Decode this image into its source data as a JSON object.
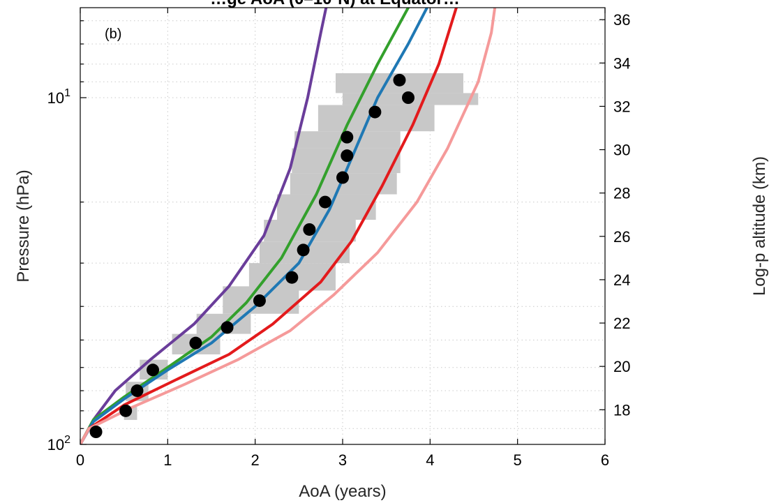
{
  "chart_data": {
    "type": "line",
    "title": "…ge AoA (0–10ºN) at Equator…",
    "panel_label": "(b)",
    "xlabel": "AoA (years)",
    "ylabel": "Pressure (hPa)",
    "y2label": "Log-p altitude (km)",
    "xlim": [
      0,
      6
    ],
    "ylim_hpa": [
      100,
      4.3
    ],
    "y_scale": "log",
    "grid": true,
    "x_ticks": [
      "0",
      "1",
      "2",
      "3",
      "4",
      "5",
      "6"
    ],
    "y_ticks": [
      {
        "label": "10",
        "exp": "2",
        "value": 100
      },
      {
        "label": "10",
        "exp": "1",
        "value": 10
      }
    ],
    "y2_ticks": [
      "18",
      "20",
      "22",
      "24",
      "26",
      "28",
      "30",
      "32",
      "34",
      "36"
    ],
    "y2_km_per_decade": 16,
    "colors": {
      "purple": "#6a3d9a",
      "green": "#33a02c",
      "blue": "#1f78b4",
      "red": "#e31a1c",
      "pink": "#f59a9a",
      "box": "#c8c8c8",
      "obs": "#000000"
    },
    "series": [
      {
        "color": "purple",
        "points": [
          [
            0,
            100
          ],
          [
            0.15,
            85
          ],
          [
            0.4,
            70
          ],
          [
            0.8,
            57
          ],
          [
            1.3,
            45
          ],
          [
            1.7,
            35
          ],
          [
            2.1,
            25
          ],
          [
            2.4,
            16
          ],
          [
            2.6,
            10
          ],
          [
            2.75,
            6.5
          ],
          [
            2.9,
            4.3
          ]
        ]
      },
      {
        "color": "green",
        "points": [
          [
            0,
            100
          ],
          [
            0.15,
            85
          ],
          [
            0.5,
            73
          ],
          [
            1.0,
            60
          ],
          [
            1.5,
            49
          ],
          [
            1.9,
            39
          ],
          [
            2.3,
            29
          ],
          [
            2.7,
            19
          ],
          [
            3.05,
            12
          ],
          [
            3.4,
            8
          ],
          [
            3.75,
            5.5
          ],
          [
            4.0,
            4.3
          ]
        ]
      },
      {
        "color": "blue",
        "points": [
          [
            0,
            100
          ],
          [
            0.15,
            86
          ],
          [
            0.5,
            74
          ],
          [
            1.0,
            61
          ],
          [
            1.5,
            51
          ],
          [
            2.0,
            40
          ],
          [
            2.5,
            30
          ],
          [
            2.85,
            21
          ],
          [
            3.1,
            15
          ],
          [
            3.4,
            10
          ],
          [
            3.75,
            7
          ],
          [
            4.05,
            5
          ],
          [
            4.2,
            4.3
          ]
        ]
      },
      {
        "color": "red",
        "points": [
          [
            0,
            100
          ],
          [
            0.1,
            90
          ],
          [
            0.5,
            77
          ],
          [
            1.1,
            65
          ],
          [
            1.7,
            55
          ],
          [
            2.2,
            45
          ],
          [
            2.75,
            34
          ],
          [
            3.1,
            26
          ],
          [
            3.45,
            18
          ],
          [
            3.8,
            12
          ],
          [
            4.1,
            8
          ],
          [
            4.3,
            5.5
          ],
          [
            4.4,
            4.3
          ]
        ]
      },
      {
        "color": "pink",
        "points": [
          [
            0,
            100
          ],
          [
            0.1,
            90
          ],
          [
            0.6,
            78
          ],
          [
            1.2,
            67
          ],
          [
            1.8,
            57
          ],
          [
            2.4,
            47
          ],
          [
            2.9,
            37
          ],
          [
            3.4,
            28
          ],
          [
            3.85,
            20
          ],
          [
            4.2,
            14
          ],
          [
            4.55,
            9
          ],
          [
            4.7,
            6.5
          ],
          [
            4.8,
            4.3
          ]
        ]
      }
    ],
    "observations": [
      {
        "aoa": 0.18,
        "p": 92
      },
      {
        "aoa": 0.52,
        "p": 80
      },
      {
        "aoa": 0.65,
        "p": 70
      },
      {
        "aoa": 0.83,
        "p": 61
      },
      {
        "aoa": 1.32,
        "p": 51
      },
      {
        "aoa": 1.68,
        "p": 46
      },
      {
        "aoa": 2.05,
        "p": 38.5
      },
      {
        "aoa": 2.42,
        "p": 33
      },
      {
        "aoa": 2.55,
        "p": 27.5
      },
      {
        "aoa": 2.62,
        "p": 24
      },
      {
        "aoa": 2.8,
        "p": 20
      },
      {
        "aoa": 3.0,
        "p": 17
      },
      {
        "aoa": 3.05,
        "p": 14.7
      },
      {
        "aoa": 3.05,
        "p": 13
      },
      {
        "aoa": 3.37,
        "p": 11
      },
      {
        "aoa": 3.75,
        "p": 10
      },
      {
        "aoa": 3.65,
        "p": 8.9
      }
    ],
    "ranges": [
      {
        "x0": 0.5,
        "x1": 0.65,
        "p0": 85,
        "p1": 78
      },
      {
        "x0": 0.52,
        "x1": 0.78,
        "p0": 75,
        "p1": 66
      },
      {
        "x0": 0.68,
        "x1": 1.0,
        "p0": 65,
        "p1": 57
      },
      {
        "x0": 1.05,
        "x1": 1.6,
        "p0": 55,
        "p1": 48
      },
      {
        "x0": 1.33,
        "x1": 1.95,
        "p0": 48,
        "p1": 42
      },
      {
        "x0": 1.63,
        "x1": 2.5,
        "p0": 42,
        "p1": 35
      },
      {
        "x0": 1.93,
        "x1": 2.92,
        "p0": 36,
        "p1": 30
      },
      {
        "x0": 2.05,
        "x1": 3.08,
        "p0": 30,
        "p1": 26
      },
      {
        "x0": 2.1,
        "x1": 3.15,
        "p0": 26,
        "p1": 22.5
      },
      {
        "x0": 2.25,
        "x1": 3.38,
        "p0": 22.5,
        "p1": 19
      },
      {
        "x0": 2.4,
        "x1": 3.62,
        "p0": 19,
        "p1": 16.5
      },
      {
        "x0": 2.42,
        "x1": 3.66,
        "p0": 16.5,
        "p1": 14
      },
      {
        "x0": 2.45,
        "x1": 3.66,
        "p0": 14,
        "p1": 12.5
      },
      {
        "x0": 2.72,
        "x1": 4.05,
        "p0": 12.5,
        "p1": 10.5
      },
      {
        "x0": 3.0,
        "x1": 4.55,
        "p0": 10.5,
        "p1": 9.7
      },
      {
        "x0": 2.92,
        "x1": 4.38,
        "p0": 9.7,
        "p1": 8.5
      }
    ]
  }
}
